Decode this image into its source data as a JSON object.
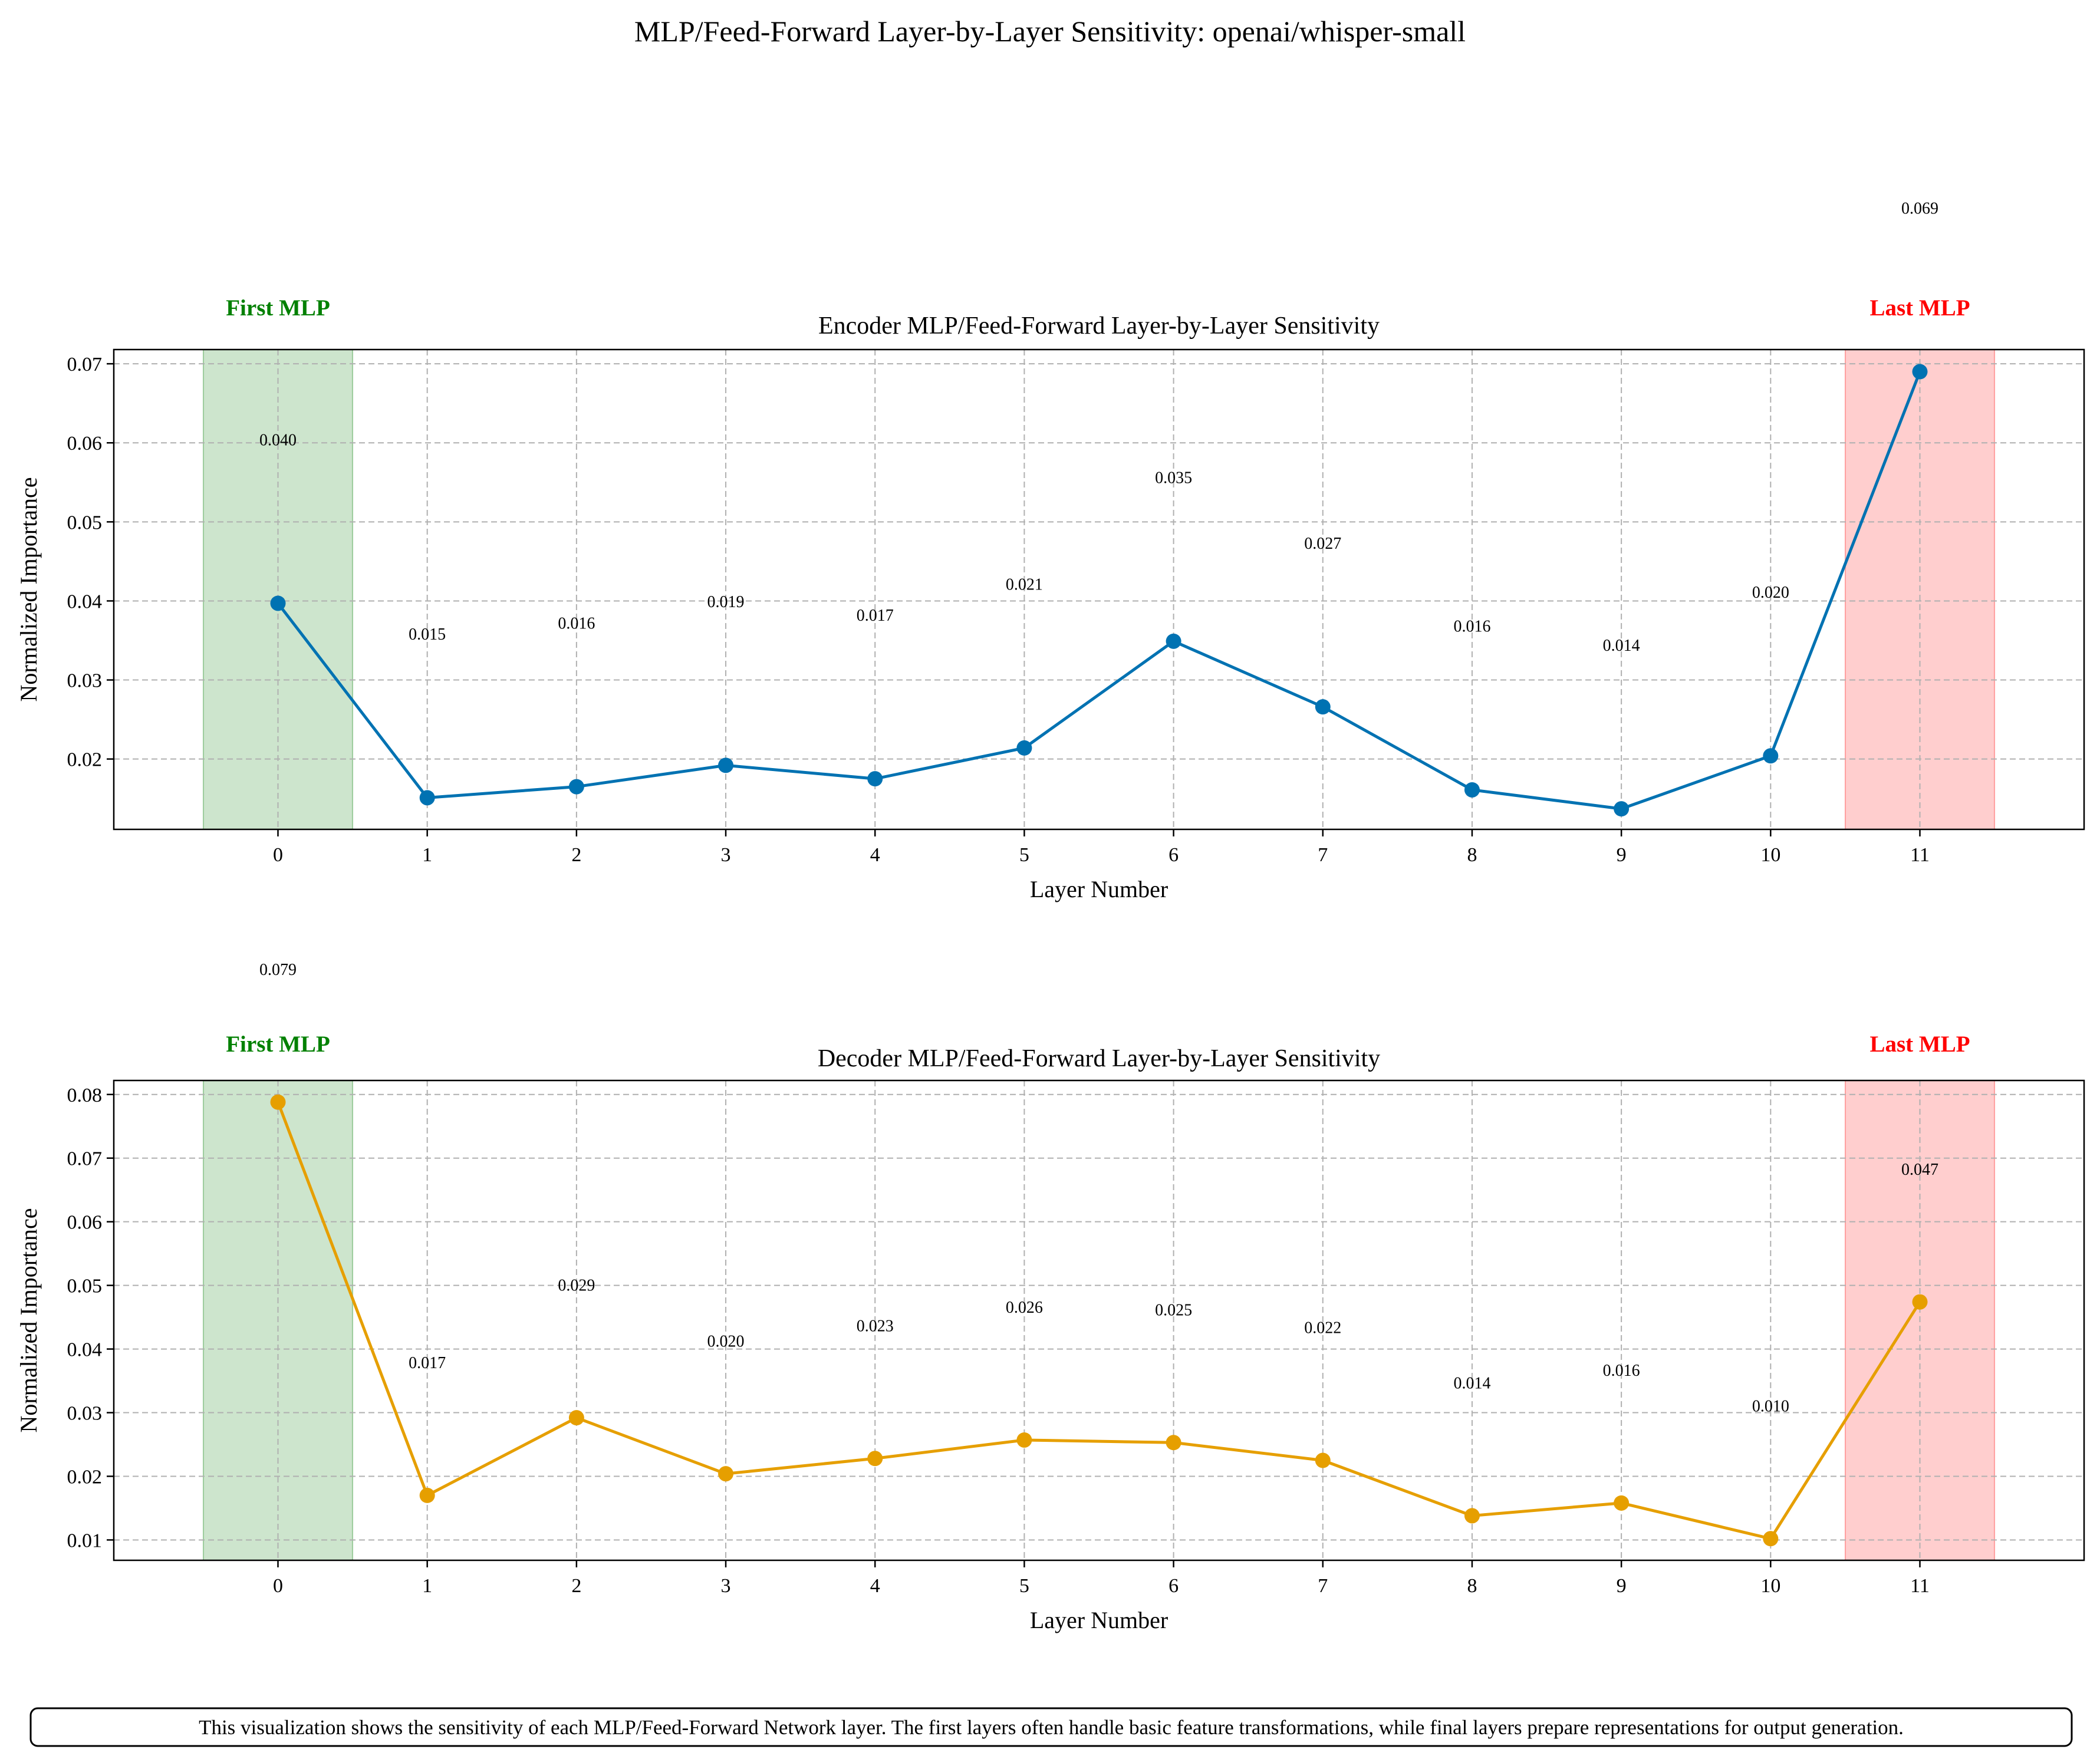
{
  "suptitle": "MLP/Feed-Forward Layer-by-Layer Sensitivity: openai/whisper-small",
  "caption": "This visualization shows the sensitivity of each MLP/Feed-Forward Network layer. The first layers often handle basic feature transformations, while final layers prepare representations for output generation.",
  "colors": {
    "encoder": "#0072B2",
    "decoder": "#E69F00",
    "first_region": "#1a8a1a",
    "last_region": "#ff2222",
    "first_label": "#008000",
    "last_label": "#ff0000"
  },
  "chart_data": [
    {
      "type": "line",
      "title": "Encoder MLP/Feed-Forward Layer-by-Layer Sensitivity",
      "xlabel": "Layer Number",
      "ylabel": "Normalized Importance",
      "categories": [
        "0",
        "1",
        "2",
        "3",
        "4",
        "5",
        "6",
        "7",
        "8",
        "9",
        "10",
        "11"
      ],
      "x": [
        0,
        1,
        2,
        3,
        4,
        5,
        6,
        7,
        8,
        9,
        10,
        11
      ],
      "values": [
        0.0397,
        0.0151,
        0.0165,
        0.0192,
        0.0175,
        0.0214,
        0.0349,
        0.0266,
        0.0161,
        0.0137,
        0.0204,
        0.069
      ],
      "value_labels": [
        "0.040",
        "0.015",
        "0.016",
        "0.019",
        "0.017",
        "0.021",
        "0.035",
        "0.027",
        "0.016",
        "0.014",
        "0.020",
        "0.069"
      ],
      "yticks": [
        0.02,
        0.03,
        0.04,
        0.05,
        0.06,
        0.07
      ],
      "ytick_labels": [
        "0.02",
        "0.03",
        "0.04",
        "0.05",
        "0.06",
        "0.07"
      ],
      "ylim": [
        0.0111,
        0.0718
      ],
      "xlim": [
        -1.1,
        12.1
      ],
      "grid": true,
      "highlight_regions": [
        {
          "label": "First MLP",
          "from": -0.5,
          "to": 0.5
        },
        {
          "label": "Last MLP",
          "from": 10.5,
          "to": 11.5
        }
      ]
    },
    {
      "type": "line",
      "title": "Decoder MLP/Feed-Forward Layer-by-Layer Sensitivity",
      "xlabel": "Layer Number",
      "ylabel": "Normalized Importance",
      "categories": [
        "0",
        "1",
        "2",
        "3",
        "4",
        "5",
        "6",
        "7",
        "8",
        "9",
        "10",
        "11"
      ],
      "x": [
        0,
        1,
        2,
        3,
        4,
        5,
        6,
        7,
        8,
        9,
        10,
        11
      ],
      "values": [
        0.0788,
        0.017,
        0.0292,
        0.0204,
        0.0228,
        0.0257,
        0.0253,
        0.0225,
        0.0138,
        0.0158,
        0.0102,
        0.0474
      ],
      "value_labels": [
        "0.079",
        "0.017",
        "0.029",
        "0.020",
        "0.023",
        "0.026",
        "0.025",
        "0.022",
        "0.014",
        "0.016",
        "0.010",
        "0.047"
      ],
      "yticks": [
        0.01,
        0.02,
        0.03,
        0.04,
        0.05,
        0.06,
        0.07,
        0.08
      ],
      "ytick_labels": [
        "0.01",
        "0.02",
        "0.03",
        "0.04",
        "0.05",
        "0.06",
        "0.07",
        "0.08"
      ],
      "ylim": [
        0.0068,
        0.0822
      ],
      "xlim": [
        -1.1,
        12.1
      ],
      "grid": true,
      "highlight_regions": [
        {
          "label": "First MLP",
          "from": -0.5,
          "to": 0.5
        },
        {
          "label": "Last MLP",
          "from": 10.5,
          "to": 11.5
        }
      ]
    }
  ]
}
